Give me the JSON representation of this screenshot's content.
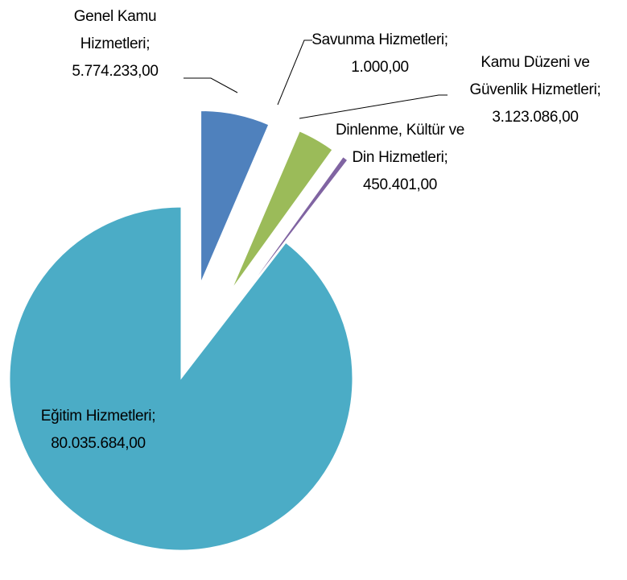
{
  "chart_data": {
    "type": "pie",
    "categories": [
      "Genel Kamu Hizmetleri;",
      "Savunma Hizmetleri;",
      "Kamu Düzeni ve Güvenlik Hizmetleri;",
      "Dinlenme, Kültür ve Din Hizmetleri;",
      "Eğitim Hizmetleri;"
    ],
    "values": [
      5774233,
      1000,
      3123086,
      450401,
      80035684
    ],
    "value_labels": [
      "5.774.233,00",
      "1.000,00",
      "3.123.086,00",
      "450.401,00",
      "80.035.684,00"
    ],
    "colors": [
      "#4f81bd",
      "#c0504d",
      "#9bbb59",
      "#8064a2",
      "#4bacc6"
    ]
  }
}
